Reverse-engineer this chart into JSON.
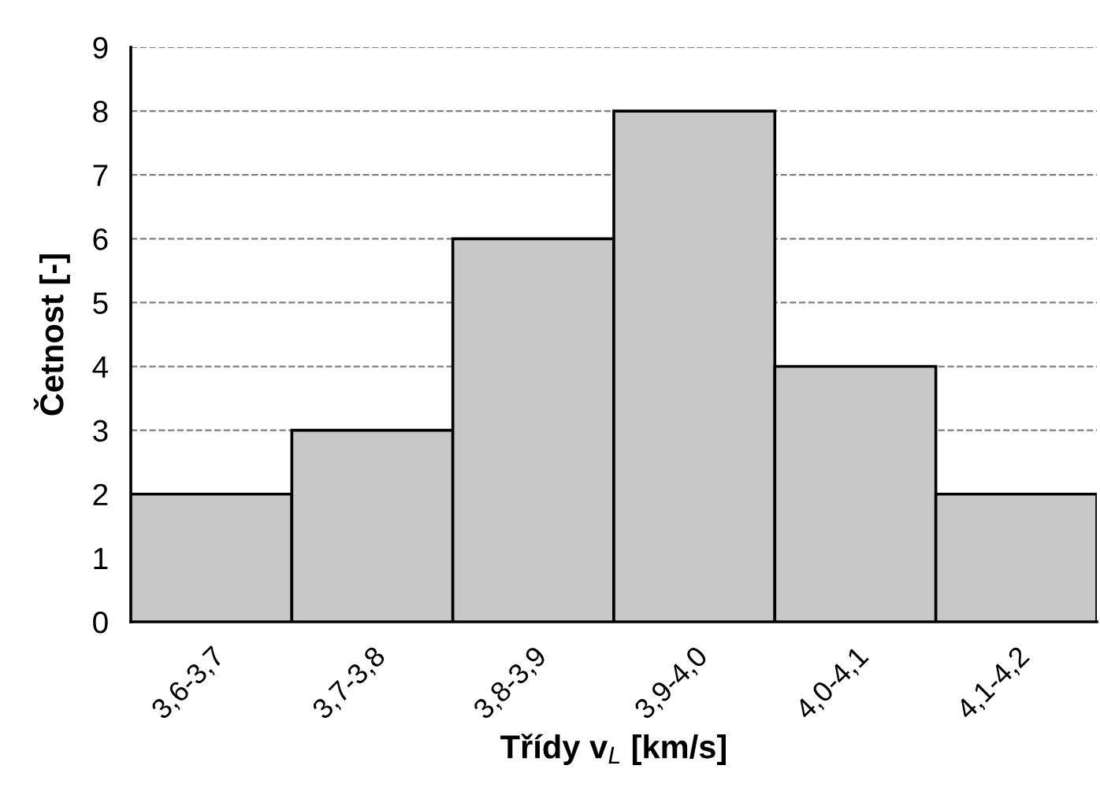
{
  "chart_data": {
    "type": "bar",
    "xlabel": "Třídy v$_{L}$ [km/s]",
    "ylabel": "Četnost [-]",
    "categories": [
      "3,6-3,7",
      "3,7-3,8",
      "3,8-3,9",
      "3,9-4,0",
      "4,0-4,1",
      "4,1-4,2"
    ],
    "values": [
      2,
      3,
      6,
      8,
      4,
      2
    ],
    "color": "#c8c8c8",
    "ylim": [
      0,
      9
    ],
    "yticks": [
      0,
      1,
      2,
      3,
      4,
      5,
      6,
      7,
      8,
      9
    ],
    "grid": "y",
    "line_style": "dashed"
  }
}
